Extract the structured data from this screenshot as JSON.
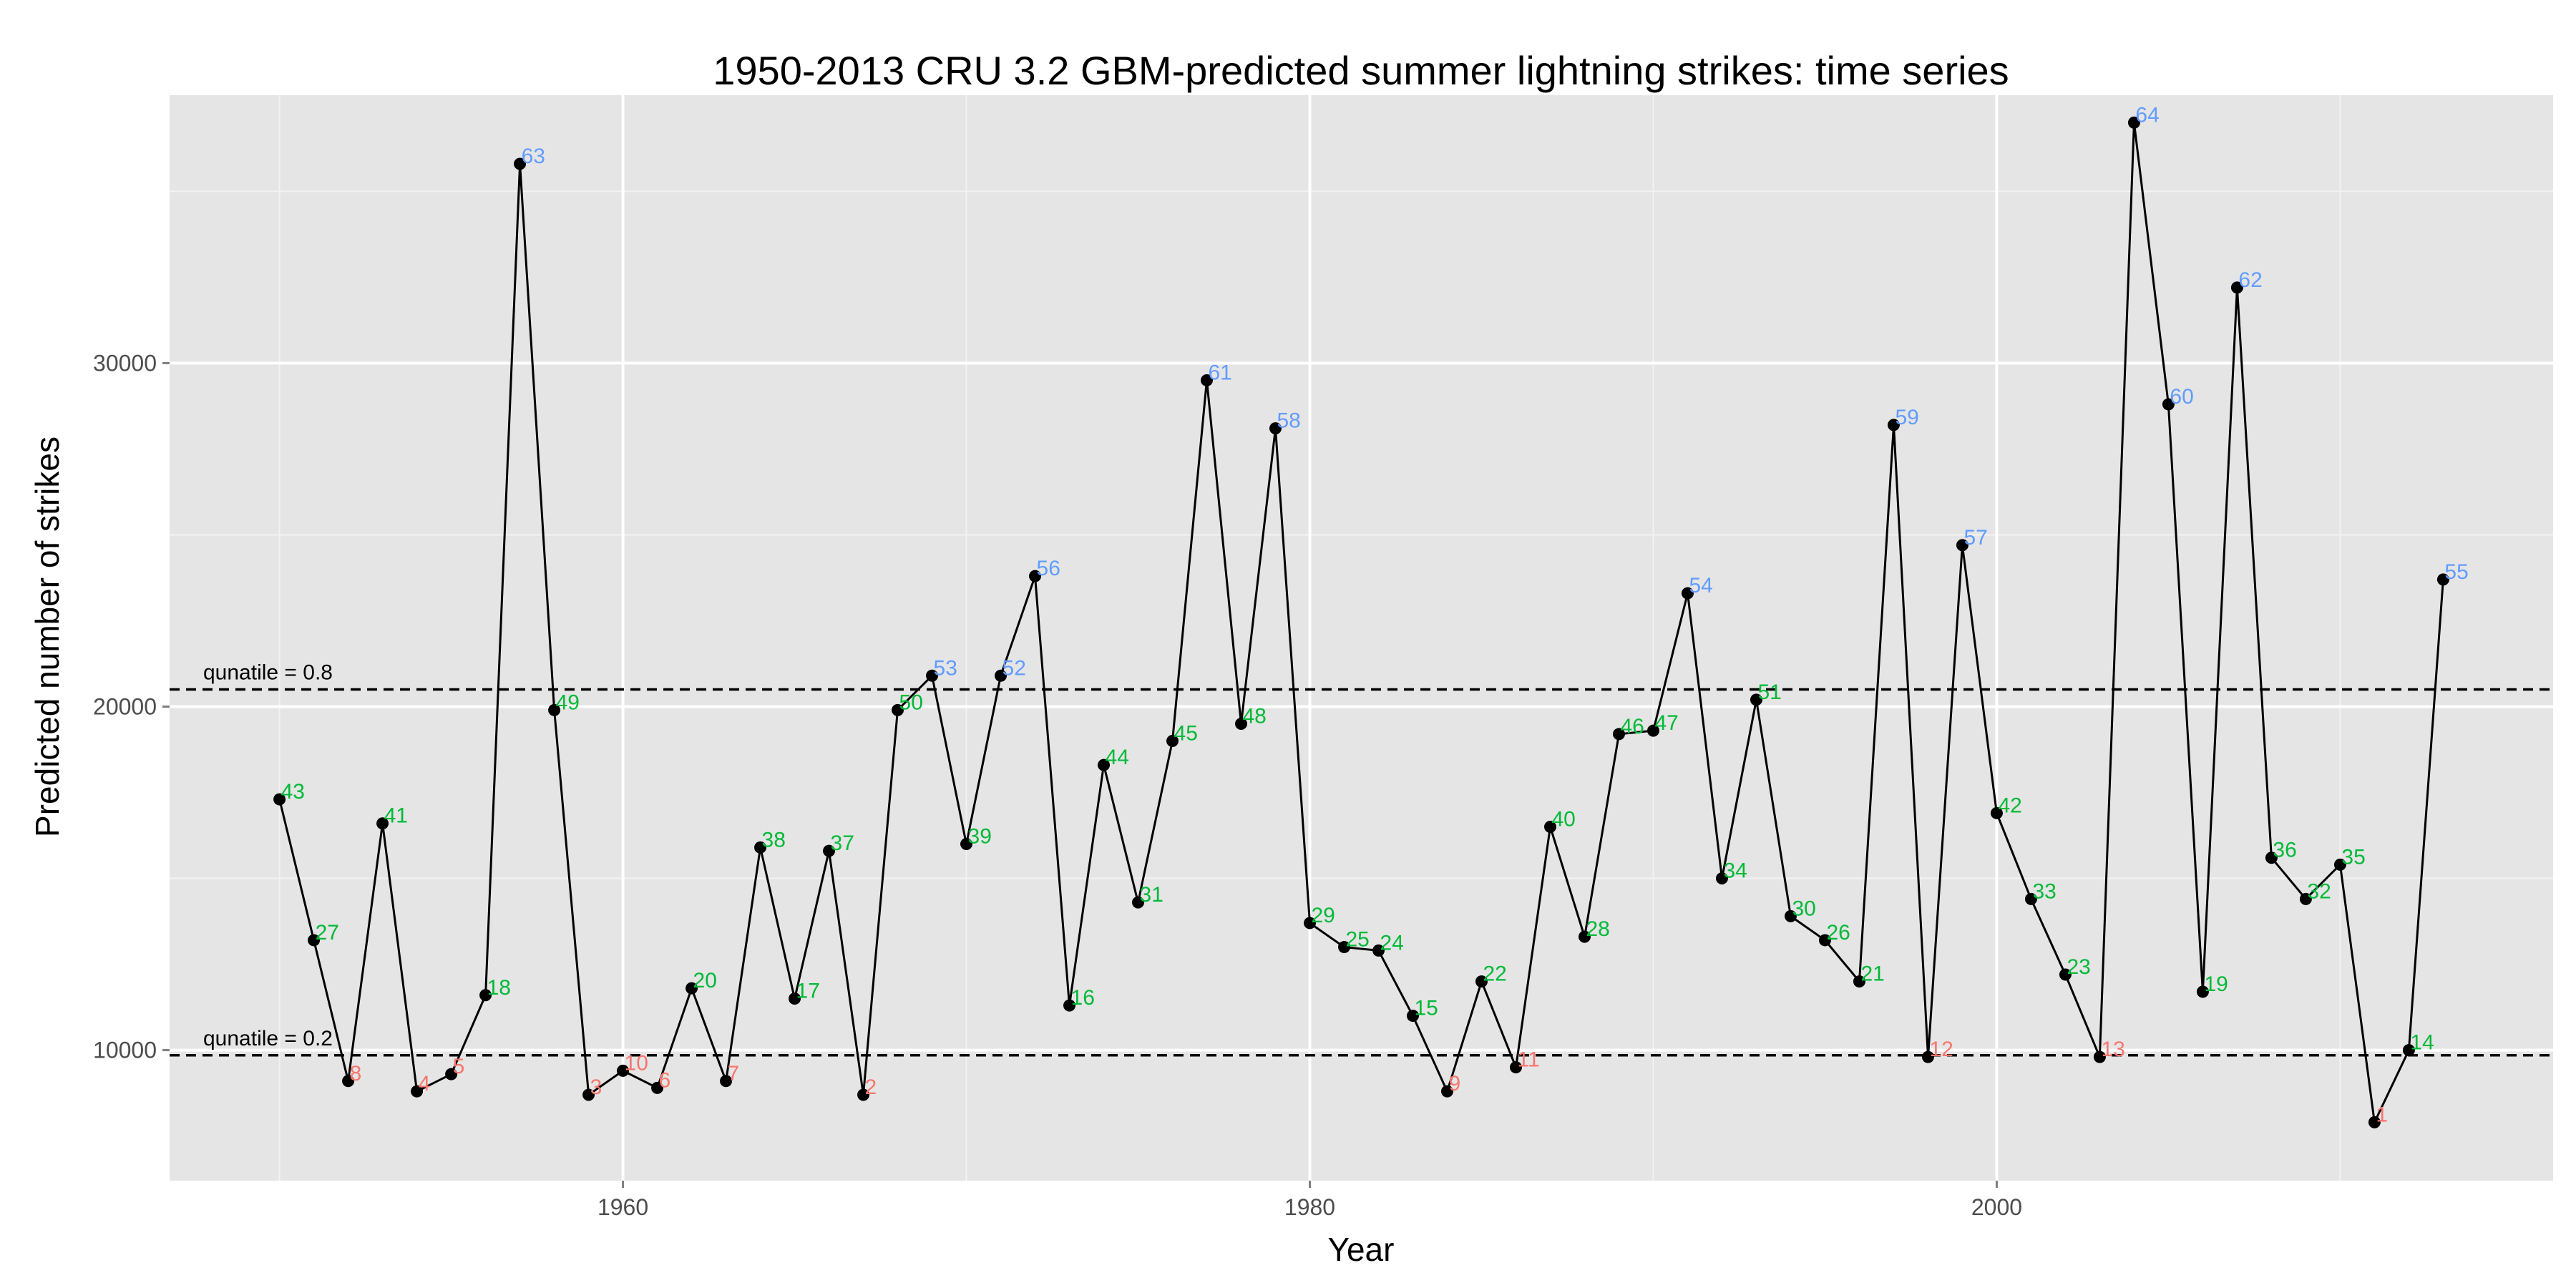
{
  "chart_data": {
    "type": "line",
    "title": "1950-2013 CRU 3.2 GBM-predicted summer lightning strikes: time series",
    "xlabel": "Year",
    "ylabel": "Predicted number of strikes",
    "xlim": [
      1946.8,
      2016.2
    ],
    "ylim": [
      6200,
      37800
    ],
    "x_ticks": [
      1960,
      1980,
      2000
    ],
    "y_ticks": [
      10000,
      20000,
      30000
    ],
    "grid": true,
    "panel_background": "#e5e5e5",
    "colors": {
      "low": "#f8766d",
      "mid": "#00ba38",
      "high": "#619cff",
      "line": "#000000"
    },
    "reference_lines": [
      {
        "label": "qunatile = 0.8",
        "y": 20500
      },
      {
        "label": "qunatile = 0.2",
        "y": 9850
      }
    ],
    "x": [
      1950,
      1951,
      1952,
      1953,
      1954,
      1955,
      1956,
      1957,
      1958,
      1959,
      1960,
      1961,
      1962,
      1963,
      1964,
      1965,
      1966,
      1967,
      1968,
      1969,
      1970,
      1971,
      1972,
      1973,
      1974,
      1975,
      1976,
      1977,
      1978,
      1979,
      1980,
      1981,
      1982,
      1983,
      1984,
      1985,
      1986,
      1987,
      1988,
      1989,
      1990,
      1991,
      1992,
      1993,
      1994,
      1995,
      1996,
      1997,
      1998,
      1999,
      2000,
      2001,
      2002,
      2003,
      2004,
      2005,
      2006,
      2007,
      2008,
      2009,
      2010,
      2011,
      2012,
      2013
    ],
    "y": [
      17300,
      13200,
      9100,
      16600,
      8800,
      9300,
      11600,
      35800,
      19900,
      8700,
      9400,
      8900,
      11800,
      9100,
      15900,
      11500,
      15800,
      8700,
      19900,
      20900,
      16000,
      20900,
      23800,
      11300,
      18300,
      14300,
      19000,
      29500,
      19500,
      28100,
      13700,
      13000,
      12900,
      11000,
      8800,
      12000,
      9500,
      16500,
      13300,
      19200,
      19300,
      23300,
      15000,
      20200,
      13900,
      13200,
      12000,
      28200,
      9800,
      24700,
      16900,
      14400,
      12200,
      9800,
      37000,
      28800,
      11700,
      32200,
      15600,
      14400,
      15400,
      7900,
      10000,
      23700
    ],
    "labels": [
      "43",
      "27",
      "8",
      "41",
      "4",
      "5",
      "18",
      "63",
      "49",
      "3",
      "10",
      "6",
      "20",
      "7",
      "38",
      "17",
      "37",
      "2",
      "50",
      "53",
      "39",
      "52",
      "56",
      "16",
      "44",
      "31",
      "45",
      "61",
      "48",
      "58",
      "29",
      "25",
      "24",
      "15",
      "9",
      "22",
      "11",
      "40",
      "28",
      "46",
      "47",
      "54",
      "34",
      "51",
      "30",
      "26",
      "21",
      "59",
      "12",
      "57",
      "42",
      "33",
      "23",
      "13",
      "64",
      "60",
      "19",
      "62",
      "36",
      "32",
      "35",
      "1",
      "14",
      "55"
    ],
    "label_classes": [
      "mid",
      "mid",
      "low",
      "mid",
      "low",
      "low",
      "mid",
      "high",
      "mid",
      "low",
      "low",
      "low",
      "mid",
      "low",
      "mid",
      "mid",
      "mid",
      "low",
      "mid",
      "high",
      "mid",
      "high",
      "high",
      "mid",
      "mid",
      "mid",
      "mid",
      "high",
      "mid",
      "high",
      "mid",
      "mid",
      "mid",
      "mid",
      "low",
      "mid",
      "low",
      "mid",
      "mid",
      "mid",
      "mid",
      "high",
      "mid",
      "mid",
      "mid",
      "mid",
      "mid",
      "high",
      "low",
      "high",
      "mid",
      "mid",
      "mid",
      "low",
      "high",
      "high",
      "mid",
      "high",
      "mid",
      "mid",
      "mid",
      "low",
      "mid",
      "high"
    ]
  }
}
